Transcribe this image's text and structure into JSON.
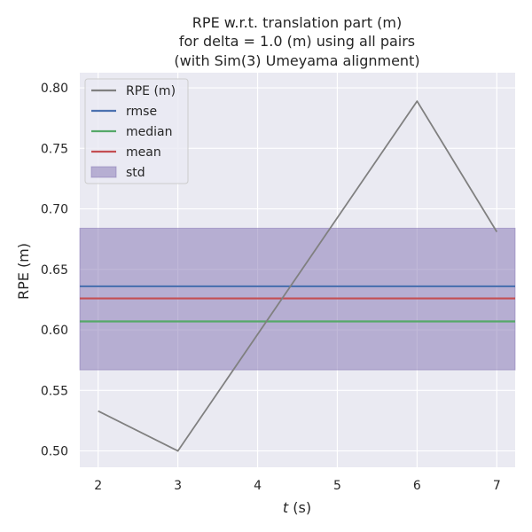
{
  "chart_data": {
    "type": "line",
    "title_lines": [
      "RPE w.r.t. translation part (m)",
      "for delta = 1.0 (m) using all pairs",
      "(with Sim(3) Umeyama alignment)"
    ],
    "xlabel_var": "t",
    "xlabel_unit": " (s)",
    "ylabel": "RPE (m)",
    "xlim": [
      1.77,
      7.23
    ],
    "ylim": [
      0.4865,
      0.8125
    ],
    "x_ticks": [
      2,
      3,
      4,
      5,
      6,
      7
    ],
    "y_ticks": [
      0.5,
      0.55,
      0.6,
      0.65,
      0.7,
      0.75,
      0.8
    ],
    "grid": true,
    "background": "#eaeaf2",
    "legend_placement": "top-left",
    "series": [
      {
        "name": "RPE (m)",
        "color": "#808080",
        "x": [
          2,
          3,
          6,
          7
        ],
        "y": [
          0.533,
          0.5,
          0.789,
          0.681
        ]
      }
    ],
    "hlines": [
      {
        "name": "rmse",
        "value": 0.636,
        "color": "#4c72b0"
      },
      {
        "name": "median",
        "value": 0.607,
        "color": "#55a868"
      },
      {
        "name": "mean",
        "value": 0.626,
        "color": "#c44e52"
      }
    ],
    "band": {
      "name": "std",
      "low": 0.567,
      "high": 0.684,
      "color": "#8172b2"
    }
  }
}
